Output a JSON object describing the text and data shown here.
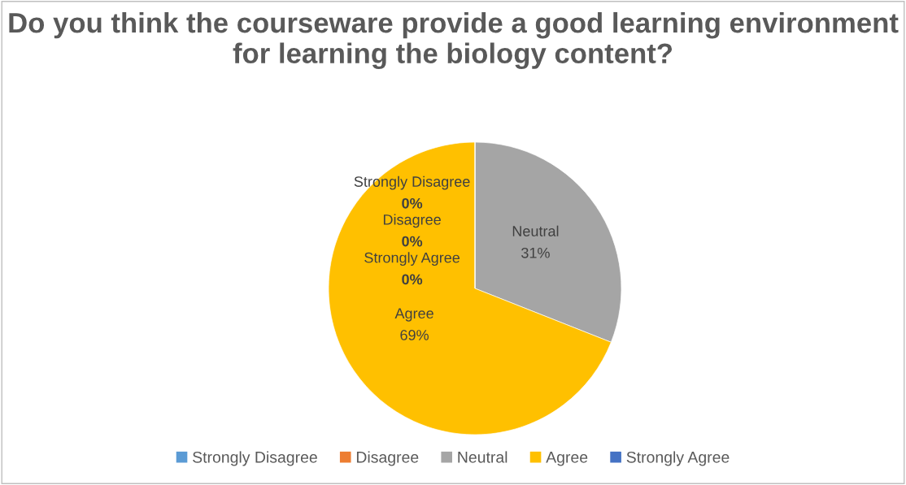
{
  "chart_data": {
    "type": "pie",
    "title": "Do you think the courseware provide a good learning environment for learning the biology content?",
    "categories": [
      "Strongly Disagree",
      "Disagree",
      "Neutral",
      "Agree",
      "Strongly Agree"
    ],
    "values": [
      0,
      0,
      31,
      69,
      0
    ],
    "colors": [
      "#5b9bd5",
      "#ed7d31",
      "#a5a5a5",
      "#ffc000",
      "#4472c4"
    ],
    "value_labels": [
      "0%",
      "0%",
      "31%",
      "69%",
      "0%"
    ],
    "legend": "bottom"
  }
}
